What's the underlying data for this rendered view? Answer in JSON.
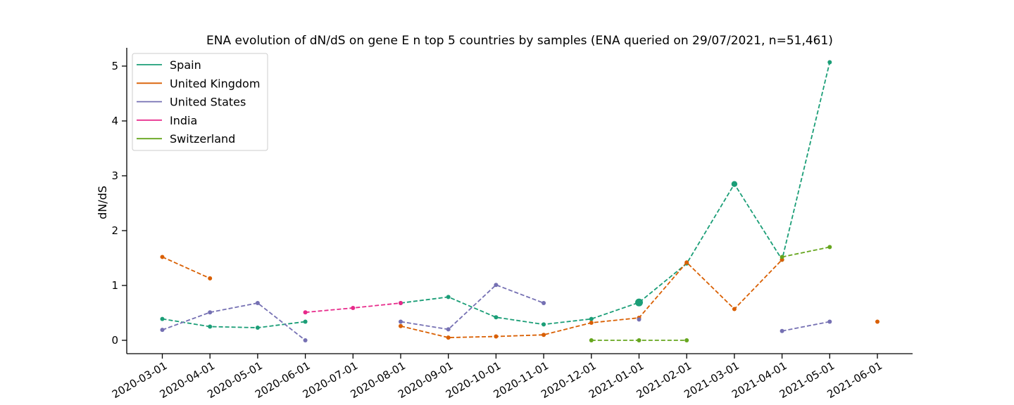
{
  "chart_data": {
    "type": "line",
    "title": "ENA evolution of dN/dS on gene E n top 5 countries by samples (ENA queried on 29/07/2021, n=51,461)",
    "xlabel": "",
    "ylabel": "dN/dS",
    "categories": [
      "2020-03-01",
      "2020-04-01",
      "2020-05-01",
      "2020-06-01",
      "2020-07-01",
      "2020-08-01",
      "2020-09-01",
      "2020-10-01",
      "2020-11-01",
      "2020-12-01",
      "2021-01-01",
      "2021-02-01",
      "2021-03-01",
      "2021-04-01",
      "2021-05-01",
      "2021-06-01"
    ],
    "yticks": [
      0,
      1,
      2,
      3,
      4,
      5
    ],
    "ylim": [
      -0.25,
      5.3
    ],
    "grid": false,
    "legend_position": "top-left",
    "series": [
      {
        "name": "Spain",
        "color": "#1b9e77",
        "values": [
          0.39,
          0.25,
          0.23,
          0.34,
          null,
          0.68,
          0.79,
          0.42,
          0.29,
          0.39,
          0.69,
          1.4,
          2.85,
          1.47,
          5.07,
          null
        ],
        "big_marker_at": [
          10,
          12
        ]
      },
      {
        "name": "United Kingdom",
        "color": "#d95f02",
        "values": [
          1.52,
          1.13,
          null,
          null,
          null,
          0.26,
          0.05,
          0.07,
          0.1,
          0.32,
          0.41,
          1.42,
          0.57,
          1.47,
          null,
          0.34
        ],
        "big_marker_at": []
      },
      {
        "name": "United States",
        "color": "#7570b3",
        "values": [
          0.19,
          0.51,
          0.68,
          0.0,
          null,
          0.34,
          0.2,
          1.01,
          0.68,
          null,
          0.38,
          null,
          null,
          0.17,
          0.34,
          null
        ],
        "big_marker_at": []
      },
      {
        "name": "India",
        "color": "#e7298a",
        "values": [
          null,
          null,
          null,
          0.51,
          0.59,
          0.68,
          null,
          null,
          null,
          null,
          null,
          null,
          null,
          null,
          null,
          null
        ],
        "big_marker_at": []
      },
      {
        "name": "Switzerland",
        "color": "#66a61e",
        "values": [
          null,
          null,
          null,
          null,
          null,
          null,
          null,
          null,
          null,
          0.0,
          0.0,
          0.0,
          null,
          1.52,
          1.7,
          null
        ],
        "big_marker_at": []
      }
    ]
  }
}
